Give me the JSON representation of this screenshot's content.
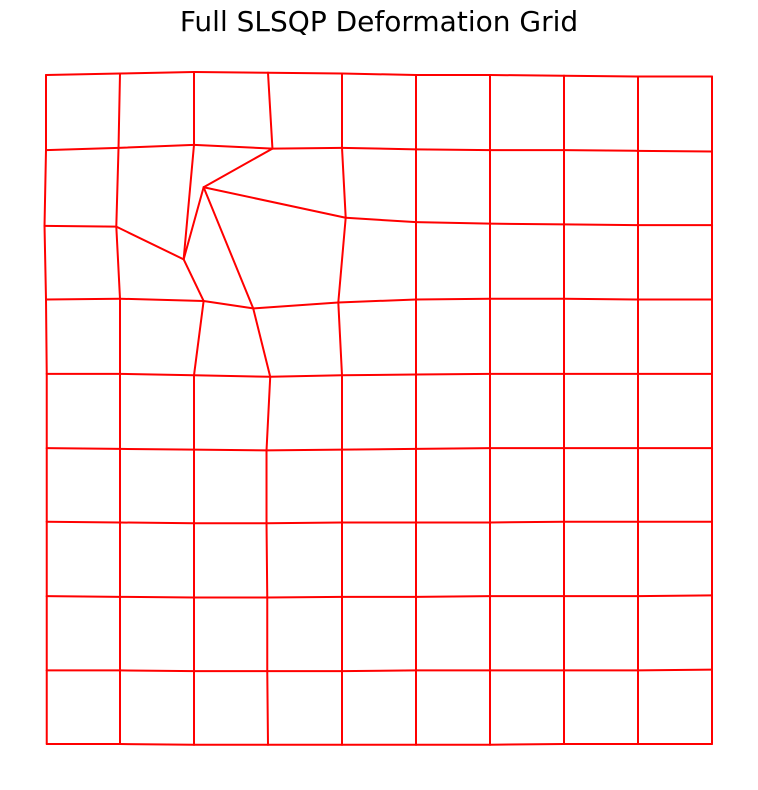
{
  "chart_data": {
    "type": "grid",
    "title": "Full SLSQP Deformation Grid",
    "line_color": "#ff0000",
    "grid": false,
    "axes_visible": false,
    "rows": 10,
    "cols": 10,
    "xlim": [
      0,
      9
    ],
    "ylim": [
      0,
      9
    ],
    "nodes": [
      [
        [
          0.0,
          9.0
        ],
        [
          1.0,
          9.02
        ],
        [
          2.0,
          9.04
        ],
        [
          3.0,
          9.03
        ],
        [
          4.0,
          9.02
        ],
        [
          5.0,
          9.0
        ],
        [
          6.0,
          9.0
        ],
        [
          7.0,
          8.99
        ],
        [
          8.0,
          8.98
        ],
        [
          9.0,
          8.98
        ]
      ],
      [
        [
          0.0,
          7.99
        ],
        [
          0.98,
          8.02
        ],
        [
          2.0,
          8.06
        ],
        [
          3.06,
          8.01
        ],
        [
          4.0,
          8.02
        ],
        [
          5.0,
          8.0
        ],
        [
          6.0,
          7.99
        ],
        [
          7.0,
          7.99
        ],
        [
          8.0,
          7.98
        ],
        [
          9.0,
          7.97
        ]
      ],
      [
        [
          -0.02,
          6.97
        ],
        [
          0.95,
          6.96
        ],
        [
          1.86,
          6.52
        ],
        [
          2.13,
          7.49
        ],
        [
          4.05,
          7.08
        ],
        [
          5.0,
          7.02
        ],
        [
          6.0,
          7.0
        ],
        [
          7.0,
          6.99
        ],
        [
          8.0,
          6.98
        ],
        [
          9.0,
          6.98
        ]
      ],
      [
        [
          0.0,
          5.98
        ],
        [
          1.0,
          5.99
        ],
        [
          2.13,
          5.96
        ],
        [
          2.8,
          5.86
        ],
        [
          3.95,
          5.94
        ],
        [
          5.0,
          5.98
        ],
        [
          6.0,
          5.99
        ],
        [
          7.0,
          5.99
        ],
        [
          8.0,
          5.98
        ],
        [
          9.0,
          5.98
        ]
      ],
      [
        [
          0.01,
          4.98
        ],
        [
          1.0,
          4.98
        ],
        [
          2.0,
          4.96
        ],
        [
          3.03,
          4.94
        ],
        [
          4.0,
          4.96
        ],
        [
          5.0,
          4.97
        ],
        [
          6.0,
          4.98
        ],
        [
          7.0,
          4.98
        ],
        [
          8.0,
          4.98
        ],
        [
          9.0,
          4.98
        ]
      ],
      [
        [
          0.01,
          3.98
        ],
        [
          1.0,
          3.97
        ],
        [
          2.0,
          3.96
        ],
        [
          2.98,
          3.95
        ],
        [
          4.0,
          3.96
        ],
        [
          5.0,
          3.97
        ],
        [
          6.0,
          3.98
        ],
        [
          7.0,
          3.98
        ],
        [
          8.0,
          3.98
        ],
        [
          9.0,
          3.98
        ]
      ],
      [
        [
          0.01,
          2.99
        ],
        [
          1.0,
          2.98
        ],
        [
          2.0,
          2.97
        ],
        [
          2.98,
          2.97
        ],
        [
          4.0,
          2.98
        ],
        [
          5.0,
          2.98
        ],
        [
          6.0,
          2.98
        ],
        [
          7.0,
          2.99
        ],
        [
          8.0,
          2.99
        ],
        [
          9.0,
          2.99
        ]
      ],
      [
        [
          0.01,
          1.99
        ],
        [
          1.0,
          1.98
        ],
        [
          2.0,
          1.97
        ],
        [
          2.99,
          1.97
        ],
        [
          4.0,
          1.98
        ],
        [
          5.0,
          1.98
        ],
        [
          6.0,
          1.99
        ],
        [
          7.0,
          1.99
        ],
        [
          8.0,
          1.99
        ],
        [
          9.0,
          2.0
        ]
      ],
      [
        [
          0.01,
          0.99
        ],
        [
          1.0,
          0.99
        ],
        [
          2.0,
          0.98
        ],
        [
          2.99,
          0.98
        ],
        [
          4.0,
          0.98
        ],
        [
          5.0,
          0.99
        ],
        [
          6.0,
          0.99
        ],
        [
          7.0,
          0.99
        ],
        [
          8.0,
          0.99
        ],
        [
          9.0,
          1.0
        ]
      ],
      [
        [
          0.01,
          0.0
        ],
        [
          1.0,
          0.0
        ],
        [
          2.0,
          -0.01
        ],
        [
          3.0,
          -0.01
        ],
        [
          4.0,
          -0.01
        ],
        [
          5.0,
          -0.01
        ],
        [
          6.0,
          -0.01
        ],
        [
          7.0,
          0.0
        ],
        [
          8.0,
          0.0
        ],
        [
          9.0,
          0.0
        ]
      ]
    ]
  }
}
